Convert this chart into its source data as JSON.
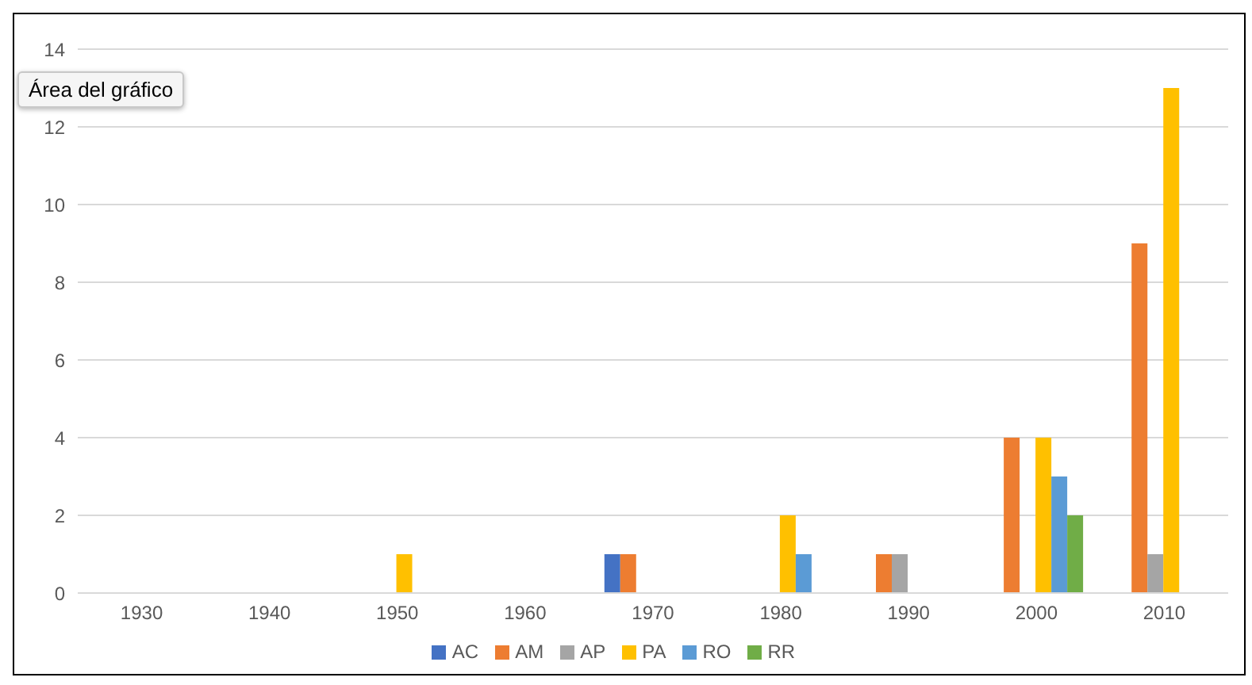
{
  "chart_data": {
    "type": "bar",
    "categories": [
      "1930",
      "1940",
      "1950",
      "1960",
      "1970",
      "1980",
      "1990",
      "2000",
      "2010"
    ],
    "series": [
      {
        "name": "AC",
        "color": "#4472c4",
        "values": [
          0,
          0,
          0,
          0,
          1,
          0,
          0,
          0,
          0
        ]
      },
      {
        "name": "AM",
        "color": "#ed7d31",
        "values": [
          0,
          0,
          0,
          0,
          1,
          0,
          1,
          4,
          9
        ]
      },
      {
        "name": "AP",
        "color": "#a5a5a5",
        "values": [
          0,
          0,
          0,
          0,
          0,
          0,
          1,
          0,
          1
        ]
      },
      {
        "name": "PA",
        "color": "#ffc000",
        "values": [
          0,
          0,
          1,
          0,
          0,
          2,
          0,
          4,
          13
        ]
      },
      {
        "name": "RO",
        "color": "#5b9bd5",
        "values": [
          0,
          0,
          0,
          0,
          0,
          1,
          0,
          3,
          0
        ]
      },
      {
        "name": "RR",
        "color": "#70ad47",
        "values": [
          0,
          0,
          0,
          0,
          0,
          0,
          0,
          2,
          0
        ]
      }
    ],
    "ylim": [
      0,
      14
    ],
    "yticks": [
      0,
      2,
      4,
      6,
      8,
      10,
      12,
      14
    ],
    "grid": "y",
    "legend": "bottom",
    "annotations": [
      "Área del gráfico"
    ]
  }
}
